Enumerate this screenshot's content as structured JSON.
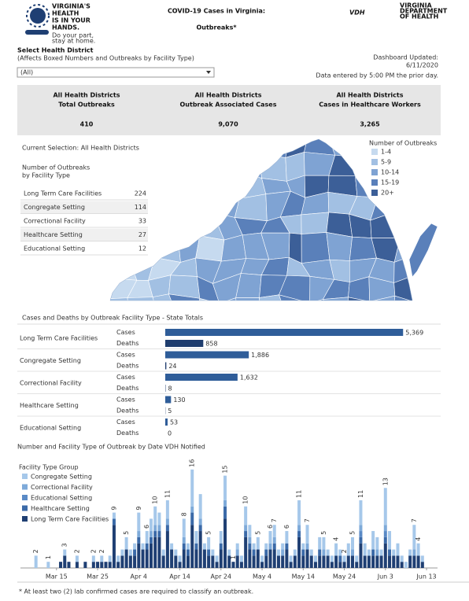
{
  "header": {
    "title_line1": "COVID-19 Cases in Virginia:",
    "title_line2": "Outbreaks*",
    "logo_lines": [
      "VIRGINIA'S",
      "HEALTH",
      "IS IN YOUR",
      "HANDS."
    ],
    "logo_sub": [
      "Do your part,",
      "stay at home."
    ],
    "vdh": "VDH",
    "vdh_lines": [
      "VIRGINIA",
      "DEPARTMENT",
      "OF HEALTH"
    ]
  },
  "filter": {
    "label": "Select Health District",
    "note": "(Affects Boxed Numbers and Outbreaks by Facility Type)",
    "selected": "(All)"
  },
  "updated": {
    "label": "Dashboard Updated:",
    "date": "6/11/2020",
    "note": "Data entered by 5:00 PM the prior day."
  },
  "kpis": [
    {
      "line1": "All Health Districts",
      "line2": "Total Outbreaks",
      "value": "410"
    },
    {
      "line1": "All Health Districts",
      "line2": "Outbreak Associated Cases",
      "value": "9,070"
    },
    {
      "line1": "All Health Districts",
      "line2": "Cases in Healthcare Workers",
      "value": "3,265"
    }
  ],
  "map": {
    "title": "Current Selection: All Health Districts",
    "legend_title": "Number of Outbreaks",
    "legend": [
      {
        "label": "1-4",
        "color": "#c6daef"
      },
      {
        "label": "5-9",
        "color": "#a2c0e3"
      },
      {
        "label": "10-14",
        "color": "#7fa3d3"
      },
      {
        "label": "15-19",
        "color": "#5a80ba"
      },
      {
        "label": "20+",
        "color": "#3c5f98"
      }
    ]
  },
  "table": {
    "title_line1": "Number of Outbreaks",
    "title_line2": "by Facility Type",
    "rows": [
      [
        "Long Term Care Facilities",
        224
      ],
      [
        "Congregate Setting",
        114
      ],
      [
        "Correctional Facility",
        33
      ],
      [
        "Healthcare Setting",
        27
      ],
      [
        "Educational Setting",
        12
      ]
    ]
  },
  "chart_data": [
    {
      "type": "bar",
      "orientation": "horizontal",
      "title": "Cases and Deaths by Outbreak Facility Type - State Totals",
      "categories": [
        "Long Term Care Facilities",
        "Congregate Setting",
        "Correctional Facility",
        "Healthcare Setting",
        "Educational Setting"
      ],
      "series": [
        {
          "name": "Cases",
          "color": "#2f5d99",
          "values": [
            5369,
            1886,
            1632,
            130,
            53
          ],
          "value_labels": [
            "5,369",
            "1,886",
            "1,632",
            "130",
            "53"
          ]
        },
        {
          "name": "Deaths",
          "color": "#1f3d6e",
          "values": [
            858,
            24,
            8,
            5,
            0
          ]
        }
      ],
      "xlim": [
        0,
        5400
      ]
    },
    {
      "type": "bar",
      "stacked": true,
      "title": "Number and Facility Type of Outbreak by Date VDH Notified",
      "legend_title": "Facility Type Group",
      "ylim": [
        0,
        17
      ],
      "categories": [
        null,
        null,
        null,
        null,
        null,
        null,
        null,
        null,
        "Mar 15",
        null,
        null,
        null,
        null,
        null,
        null,
        null,
        null,
        null,
        "Mar 25",
        null,
        null,
        null,
        null,
        null,
        null,
        null,
        null,
        null,
        "Apr 4",
        null,
        null,
        null,
        null,
        null,
        null,
        null,
        null,
        null,
        "Apr 14",
        null,
        null,
        null,
        null,
        null,
        null,
        null,
        null,
        null,
        "Apr 24",
        null,
        null,
        null,
        null,
        null,
        null,
        null,
        null,
        null,
        "May 4",
        null,
        null,
        null,
        null,
        null,
        null,
        null,
        null,
        null,
        "May 14",
        null,
        null,
        null,
        null,
        null,
        null,
        null,
        null,
        null,
        "May 24",
        null,
        null,
        null,
        null,
        null,
        null,
        null,
        null,
        null,
        "Jun 3",
        null,
        null,
        null,
        null,
        null,
        null,
        null,
        null,
        null,
        "Jun 13"
      ],
      "series": [
        {
          "name": "Congregate Setting",
          "color": "#a6c8ea",
          "values": [
            0,
            0,
            0,
            2,
            0,
            0,
            1,
            0,
            0,
            0,
            1,
            0,
            0,
            1,
            0,
            0,
            0,
            1,
            0,
            1,
            0,
            1,
            1,
            1,
            1,
            2,
            1,
            1,
            3,
            1,
            2,
            2,
            3,
            2,
            1,
            3,
            1,
            1,
            1,
            3,
            1,
            6,
            2,
            4,
            1,
            2,
            1,
            1,
            2,
            4,
            1,
            0,
            1,
            1,
            3,
            2,
            1,
            2,
            1,
            1,
            2,
            2,
            1,
            1,
            2,
            1,
            1,
            4,
            1,
            3,
            1,
            1,
            2,
            2,
            1,
            1,
            2,
            1,
            1,
            2,
            2,
            1,
            4,
            2,
            1,
            3,
            2,
            1,
            6,
            3,
            1,
            2,
            1,
            1,
            1,
            4,
            2,
            1,
            0
          ]
        },
        {
          "name": "Correctional Facility",
          "color": "#7eaad9",
          "values": [
            0,
            0,
            0,
            0,
            0,
            0,
            0,
            0,
            0,
            0,
            0,
            0,
            0,
            0,
            0,
            0,
            0,
            0,
            0,
            0,
            0,
            0,
            0,
            0,
            0,
            0,
            0,
            0,
            1,
            0,
            0,
            1,
            1,
            1,
            0,
            1,
            0,
            0,
            0,
            1,
            0,
            1,
            0,
            1,
            0,
            0,
            0,
            0,
            0,
            1,
            0,
            0,
            1,
            0,
            1,
            1,
            0,
            0,
            0,
            0,
            1,
            1,
            0,
            1,
            0,
            0,
            0,
            1,
            0,
            1,
            0,
            0,
            0,
            1,
            0,
            0,
            0,
            0,
            0,
            0,
            1,
            0,
            1,
            0,
            0,
            0,
            1,
            0,
            1,
            0,
            0,
            0,
            0,
            0,
            0,
            1,
            0,
            0,
            0
          ]
        },
        {
          "name": "Educational Setting",
          "color": "#5a8ac6",
          "values": [
            0,
            0,
            0,
            0,
            0,
            0,
            0,
            0,
            0,
            0,
            0,
            0,
            0,
            0,
            0,
            0,
            0,
            0,
            0,
            0,
            0,
            0,
            0,
            0,
            0,
            0,
            0,
            0,
            0,
            0,
            0,
            0,
            0,
            0,
            0,
            0,
            0,
            0,
            0,
            0,
            0,
            0,
            0,
            0,
            0,
            0,
            0,
            0,
            0,
            0,
            0,
            0,
            0,
            0,
            0,
            0,
            0,
            0,
            0,
            0,
            0,
            0,
            0,
            0,
            0,
            0,
            0,
            0,
            0,
            0,
            0,
            0,
            0,
            0,
            0,
            0,
            0,
            0,
            0,
            0,
            0,
            0,
            1,
            0,
            0,
            0,
            0,
            0,
            1,
            0,
            0,
            0,
            0,
            0,
            0,
            0,
            0,
            0,
            0
          ]
        },
        {
          "name": "Healthcare Setting",
          "color": "#3b6aa8",
          "values": [
            0,
            0,
            0,
            0,
            0,
            0,
            0,
            0,
            0,
            0,
            0,
            0,
            0,
            0,
            0,
            0,
            0,
            0,
            0,
            0,
            0,
            0,
            1,
            0,
            0,
            0,
            0,
            1,
            1,
            0,
            1,
            1,
            1,
            1,
            0,
            1,
            0,
            0,
            0,
            1,
            1,
            2,
            1,
            1,
            0,
            1,
            0,
            0,
            1,
            2,
            0,
            0,
            0,
            0,
            1,
            1,
            1,
            0,
            0,
            1,
            0,
            1,
            0,
            0,
            1,
            0,
            0,
            1,
            1,
            0,
            0,
            0,
            1,
            0,
            0,
            0,
            0,
            1,
            0,
            0,
            0,
            0,
            1,
            0,
            0,
            1,
            0,
            0,
            1,
            1,
            0,
            0,
            0,
            0,
            0,
            0,
            0,
            0,
            0
          ]
        },
        {
          "name": "Long Term Care Facilities",
          "color": "#1f3f73",
          "values": [
            0,
            0,
            0,
            0,
            0,
            0,
            0,
            0,
            0,
            1,
            2,
            1,
            0,
            1,
            0,
            1,
            0,
            1,
            1,
            1,
            1,
            1,
            7,
            1,
            2,
            3,
            2,
            2,
            4,
            3,
            3,
            4,
            5,
            5,
            2,
            6,
            3,
            2,
            1,
            3,
            2,
            7,
            3,
            6,
            3,
            2,
            2,
            1,
            3,
            8,
            2,
            1,
            2,
            1,
            5,
            3,
            2,
            3,
            1,
            2,
            3,
            3,
            2,
            2,
            3,
            1,
            2,
            5,
            2,
            3,
            2,
            1,
            2,
            2,
            2,
            1,
            2,
            1,
            1,
            2,
            2,
            1,
            4,
            2,
            2,
            2,
            2,
            2,
            4,
            2,
            2,
            2,
            1,
            0,
            2,
            2,
            2,
            1,
            0
          ]
        }
      ],
      "total_labels": [
        null,
        null,
        null,
        2,
        null,
        null,
        1,
        null,
        null,
        null,
        3,
        null,
        null,
        2,
        null,
        null,
        null,
        2,
        null,
        2,
        null,
        null,
        9,
        null,
        null,
        5,
        null,
        null,
        9,
        null,
        6,
        null,
        10,
        null,
        null,
        11,
        null,
        null,
        null,
        8,
        null,
        16,
        null,
        null,
        null,
        5,
        null,
        null,
        null,
        15,
        null,
        1,
        null,
        null,
        10,
        null,
        null,
        5,
        null,
        null,
        6,
        7,
        null,
        null,
        6,
        null,
        null,
        11,
        null,
        7,
        null,
        null,
        null,
        5,
        null,
        null,
        4,
        null,
        2,
        null,
        5,
        null,
        11,
        null,
        null,
        null,
        null,
        null,
        13,
        null,
        null,
        null,
        null,
        null,
        null,
        7,
        4,
        null,
        null
      ]
    }
  ],
  "footnote": "* At least two (2) lab confirmed cases are required to classify an outbreak."
}
